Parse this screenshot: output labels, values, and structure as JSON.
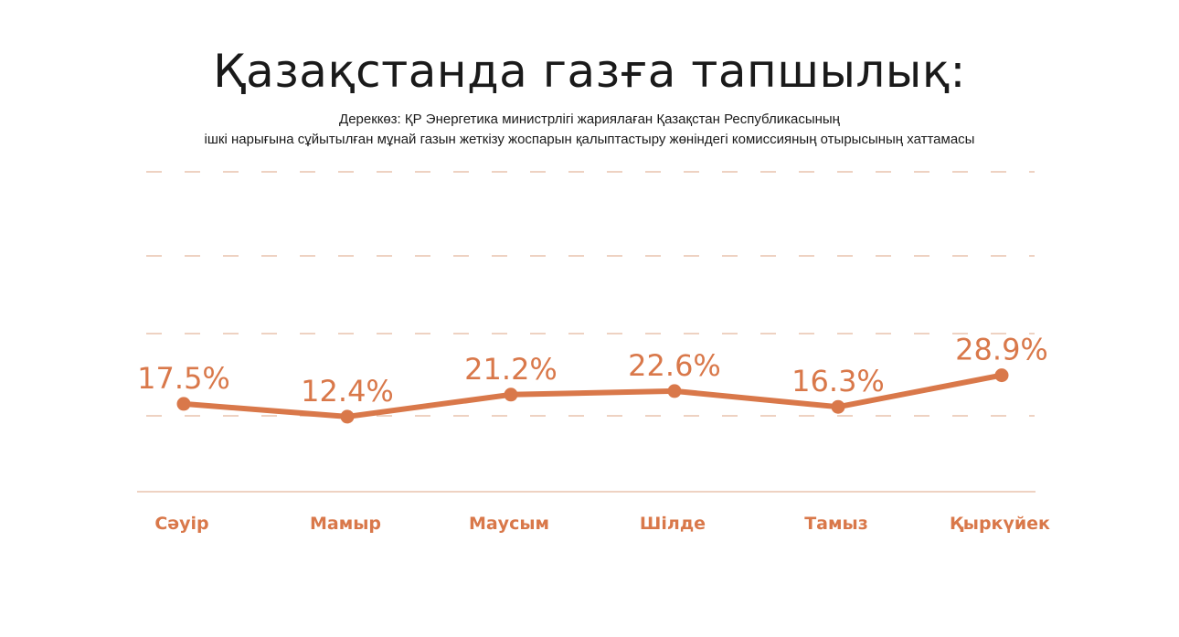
{
  "header": {
    "title": "Қазақстанда газға тапшылық:",
    "source_line1": "Дереккөз: ҚР Энергетика министрлігі жариялаған Қазақстан Республикасының",
    "source_line2": "ішкі нарығына сұйытылған мұнай газын жеткізу жоспарын қалыптастыру жөніндегі комиссияның отырысының хаттамасы"
  },
  "chart_data": {
    "type": "line",
    "title": "Қазақстанда газға тапшылық:",
    "xlabel": "",
    "ylabel": "",
    "categories": [
      "Сәуір",
      "Мамыр",
      "Маусым",
      "Шілде",
      "Тамыз",
      "Қыркүйек"
    ],
    "series": [
      {
        "values": [
          17.5,
          12.4,
          21.2,
          22.6,
          16.3,
          28.9
        ],
        "labels": [
          "17.5%",
          "12.4%",
          "21.2%",
          "22.6%",
          "16.3%",
          "28.9%"
        ]
      }
    ],
    "ylim": [
      -17.5,
      110
    ],
    "grid": "dashed horizontal",
    "legend": "none",
    "colors": {
      "line": "#d9784a",
      "grid": "#e8c3ad",
      "baseline": "#e8c3ad",
      "tick_label": "#d9784a",
      "data_label": "#d9784a"
    }
  }
}
